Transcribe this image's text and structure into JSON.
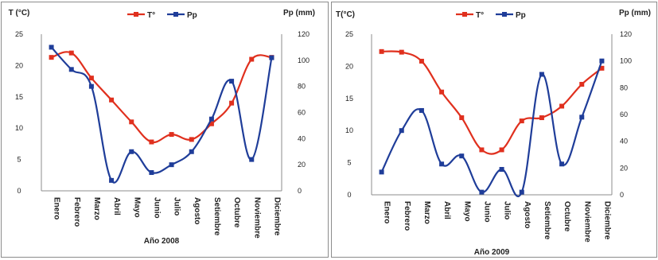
{
  "colors": {
    "temperature": "#e0301e",
    "precipitation": "#1f3d99",
    "axis": "#8c8c8c"
  },
  "chart_data": [
    {
      "type": "line",
      "xlabel": "Año 2008",
      "ylabel_left": "T (°C)",
      "ylabel_right": "Pp (mm)",
      "left_ticks": [
        "25",
        "20",
        "15",
        "10",
        "5",
        "0"
      ],
      "right_ticks": [
        "120",
        "100",
        "80",
        "60",
        "40",
        "20",
        "0"
      ],
      "ylim_left": [
        0,
        25
      ],
      "ylim_right": [
        0,
        120
      ],
      "grid": false,
      "legend_position": "top-center",
      "categories": [
        "Enero",
        "Febrero",
        "Marzo",
        "Abril",
        "Mayo",
        "Junio",
        "Julio",
        "Agosto",
        "Setiembre",
        "Octubre",
        "Noviembre",
        "Diciembre"
      ],
      "series": [
        {
          "name": "T°",
          "axis": "left",
          "values": [
            21.3,
            22.0,
            18.0,
            14.5,
            11.0,
            7.8,
            9.0,
            8.2,
            10.7,
            14.0,
            21.0,
            21.3
          ]
        },
        {
          "name": "Pp",
          "axis": "right",
          "values": [
            110,
            93,
            80,
            8,
            30,
            14,
            20,
            30,
            55,
            84,
            24,
            102
          ]
        }
      ]
    },
    {
      "type": "line",
      "xlabel": "Año 2009",
      "ylabel_left": "T(°C)",
      "ylabel_right": "Pp (mm)",
      "left_ticks": [
        "25",
        "20",
        "15",
        "10",
        "5",
        "0"
      ],
      "right_ticks": [
        "120",
        "100",
        "80",
        "60",
        "40",
        "20",
        "0"
      ],
      "ylim_left": [
        0,
        25
      ],
      "ylim_right": [
        0,
        120
      ],
      "grid": false,
      "legend_position": "top-center",
      "categories": [
        "Enero",
        "Febrero",
        "Marzo",
        "Abril",
        "Mayo",
        "Junio",
        "Julio",
        "Agosto",
        "Setiembre",
        "Octubre",
        "Noviembre",
        "Diciembre"
      ],
      "series": [
        {
          "name": "T°",
          "axis": "left",
          "values": [
            22.3,
            22.2,
            20.8,
            16.0,
            12.0,
            7.0,
            7.0,
            11.5,
            12.0,
            13.8,
            17.2,
            19.7
          ]
        },
        {
          "name": "Pp",
          "axis": "right",
          "values": [
            17,
            48,
            63,
            23,
            29,
            2,
            19,
            2,
            90,
            23,
            58,
            100
          ]
        }
      ]
    }
  ]
}
